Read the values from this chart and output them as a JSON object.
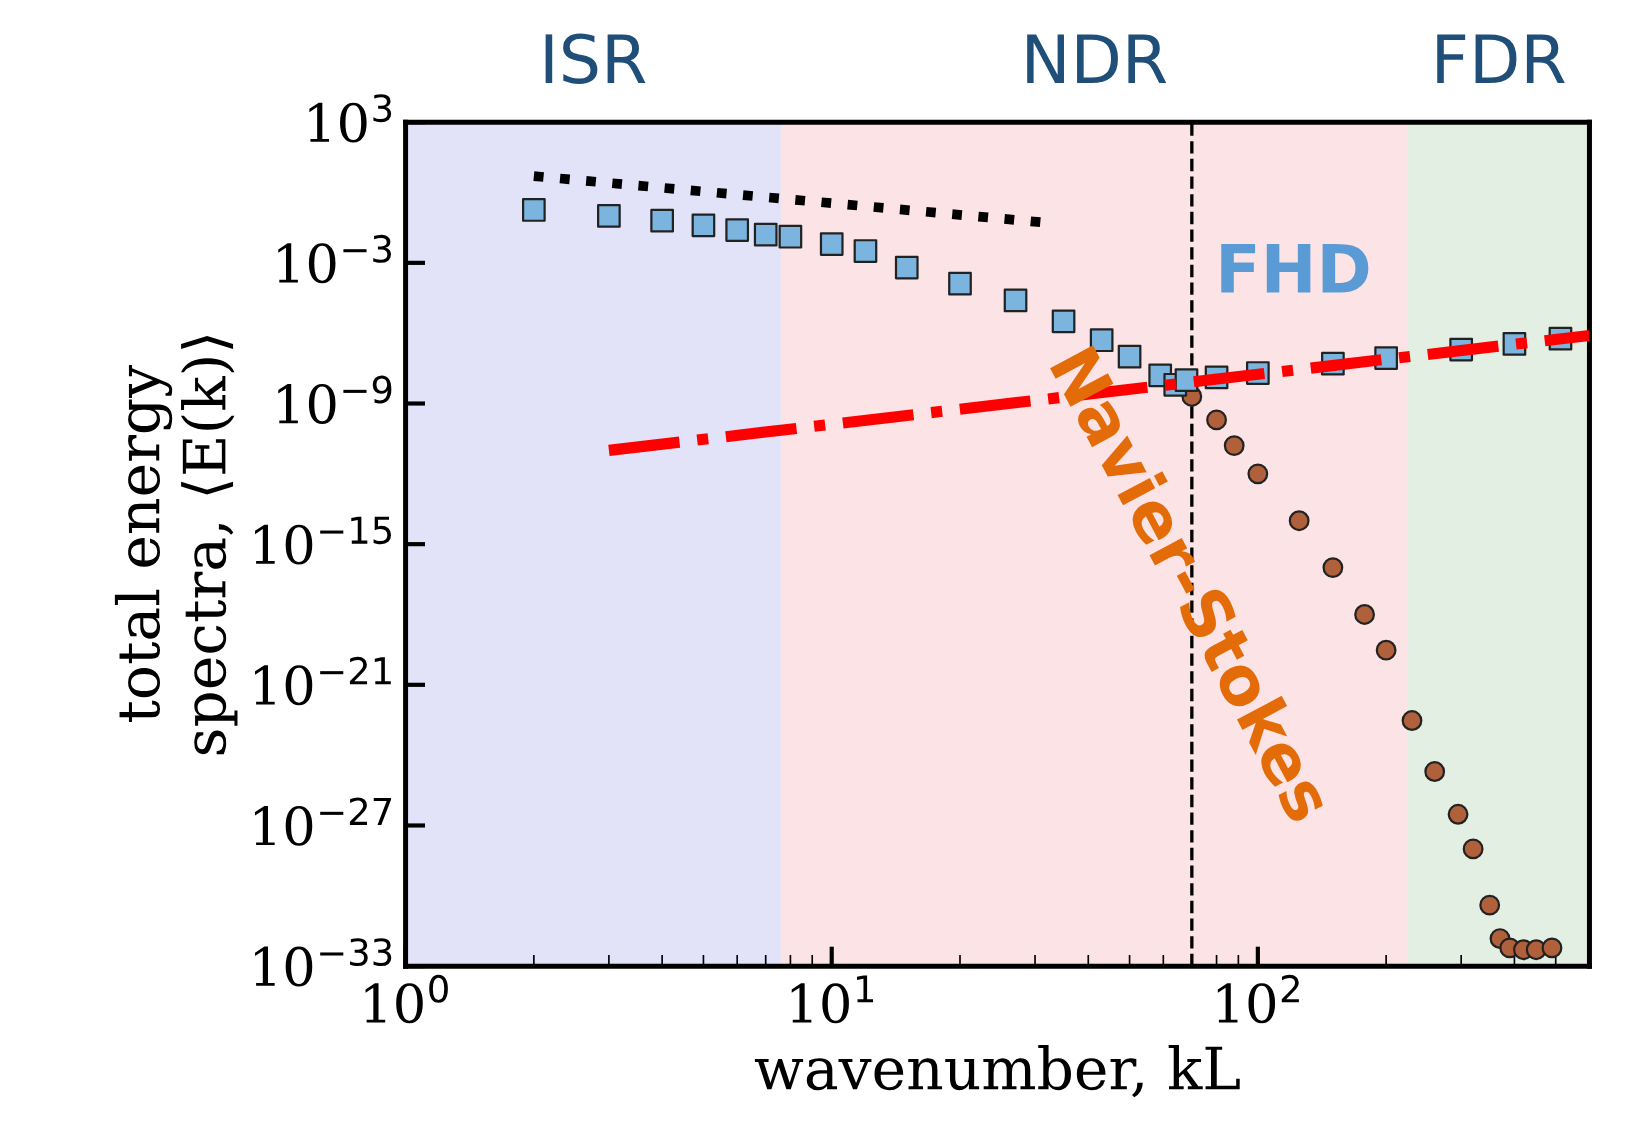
{
  "chart_data": {
    "type": "scatter",
    "xlabel": "wavenumber, kL",
    "ylabel": "total energy\nspectra, ⟨E(k)⟩",
    "log": "xy",
    "xlim": [
      1,
      600
    ],
    "ylim": [
      1e-33,
      1000.0
    ],
    "xticks": [
      {
        "value": 1,
        "label": "10$^{0}$"
      },
      {
        "value": 10,
        "label": "10$^{1}$"
      },
      {
        "value": 100,
        "label": "10$^{2}$"
      }
    ],
    "yticks": [
      {
        "value": 1e-33,
        "label": "10$^{−33}$"
      },
      {
        "value": 1e-27,
        "label": "10$^{−27}$"
      },
      {
        "value": 1e-21,
        "label": "10$^{−21}$"
      },
      {
        "value": 1e-15,
        "label": "10$^{−15}$"
      },
      {
        "value": 1e-09,
        "label": "10$^{−9}$"
      },
      {
        "value": 0.001,
        "label": "10$^{−3}$"
      },
      {
        "value": 1000.0,
        "label": "10$^{3}$"
      }
    ],
    "grid": false,
    "legend": false,
    "bands": [
      {
        "axis": "x",
        "from": 1,
        "to": 7.6,
        "label": "ISR",
        "color": "#e2e2f8"
      },
      {
        "axis": "x",
        "from": 7.6,
        "to": 225,
        "label": "NDR",
        "color": "#fce4e6"
      },
      {
        "axis": "x",
        "from": 225,
        "to": 600,
        "label": "FDR",
        "color": "#e3efe3"
      }
    ],
    "ref_lines": [
      {
        "axis": "x",
        "value": 70,
        "color": "#000000",
        "line_style": "dashed"
      }
    ],
    "series": [
      {
        "name": "Navier-Stokes",
        "marker": "circle",
        "color": "#b0603a",
        "x": [
          70,
          80,
          88,
          100,
          125,
          150,
          178,
          200,
          230,
          260,
          295,
          320,
          350,
          370,
          390,
          420,
          450,
          490
        ],
        "values": [
          2e-09,
          2e-10,
          1.6e-11,
          1e-12,
          1e-14,
          1e-16,
          1e-18,
          3e-20,
          3e-23,
          2e-25,
          3e-27,
          1e-28,
          4e-31,
          1.5e-32,
          6e-33,
          5e-33,
          5e-33,
          6e-33
        ]
      },
      {
        "name": "FHD",
        "marker": "square",
        "color": "#7ab4df",
        "x": [
          2,
          3,
          4,
          5,
          6,
          7,
          8,
          10,
          12,
          15,
          20,
          27,
          35,
          43,
          50,
          59,
          64,
          68,
          80,
          100,
          150,
          200,
          300,
          400,
          513
        ],
        "values": [
          0.18,
          0.1,
          0.063,
          0.04,
          0.025,
          0.016,
          0.013,
          0.0063,
          0.0032,
          0.00063,
          0.00013,
          2.5e-05,
          3.2e-06,
          5e-07,
          1e-07,
          1.6e-08,
          6.3e-09,
          1e-08,
          1.3e-08,
          2e-08,
          5e-08,
          8.7e-08,
          2e-07,
          3.5e-07,
          5.8e-07
        ]
      },
      {
        "type": "line",
        "line_style": "dotted",
        "marker": "none",
        "color": "#000000",
        "x": [
          2,
          31
        ],
        "values": [
          5,
          0.054
        ]
      },
      {
        "type": "line",
        "line_style": "dashdot",
        "marker": "none",
        "color": "#ff0000",
        "x": [
          3,
          600
        ],
        "values": [
          1e-11,
          8e-07
        ]
      }
    ]
  }
}
